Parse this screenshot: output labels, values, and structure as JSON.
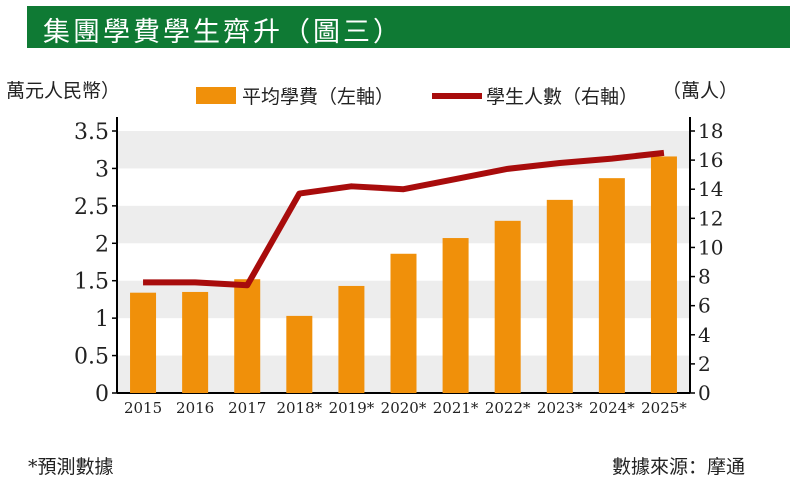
{
  "title": "集團學費學生齊升（圖三）",
  "left_unit": "萬元人民幣）",
  "right_unit": "（萬人）",
  "footnote": "*預測數據",
  "source": "數據來源：摩通",
  "colors": {
    "bar": "#f0900a",
    "line": "#a80c0c",
    "title_bg": "#0f7a34"
  },
  "chart_data": {
    "type": "bar+line",
    "categories": [
      "2015",
      "2016",
      "2017",
      "2018*",
      "2019*",
      "2020*",
      "2021*",
      "2022*",
      "2023*",
      "2024*",
      "2025*"
    ],
    "series": [
      {
        "name": "平均學費（左軸）",
        "type": "bar",
        "axis": "left",
        "values": [
          1.34,
          1.35,
          1.52,
          1.03,
          1.43,
          1.86,
          2.07,
          2.3,
          2.58,
          2.87,
          3.16
        ]
      },
      {
        "name": "學生人數（右軸）",
        "type": "line",
        "axis": "right",
        "values": [
          7.6,
          7.6,
          7.4,
          13.7,
          14.2,
          14.0,
          14.7,
          15.4,
          15.8,
          16.1,
          16.5
        ]
      }
    ],
    "left_axis": {
      "range": [
        0,
        3.5
      ],
      "ticks": [
        "0",
        "0.5",
        "1",
        "1.5",
        "2",
        "2.5",
        "3",
        "3.5"
      ]
    },
    "right_axis": {
      "range": [
        0,
        18
      ],
      "ticks": [
        "0",
        "2",
        "4",
        "6",
        "8",
        "10",
        "12",
        "14",
        "16",
        "18"
      ]
    },
    "legend_placement": "top"
  }
}
